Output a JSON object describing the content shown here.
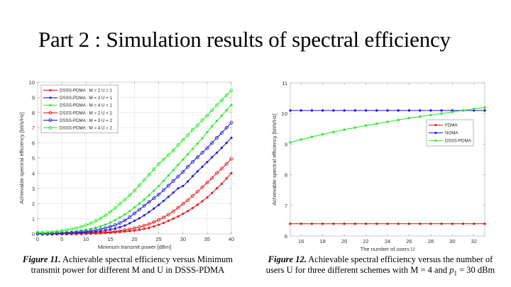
{
  "slide": {
    "title": "Part 2 : Simulation results of spectral efficiency"
  },
  "captions": {
    "fig11_label": "Figure 11.",
    "fig11_text_line1": " Achievable spectral efficiency versus Minimum",
    "fig11_text_line2": "transmit power for different M and U in DSSS-PDMA",
    "fig12_label": "Figure 12.",
    "fig12_text_line1": " Achievable spectral efficiency versus the number of",
    "fig12_text_line2_a": "users U for three different schemes with M = 4 and ",
    "fig12_text_line2_p": "p",
    "fig12_text_line2_sub": "1",
    "fig12_text_line2_b": " = 30 dBm"
  },
  "chart_data": [
    {
      "type": "line",
      "title": "",
      "xlabel": "Minimum transmit power [dBm]",
      "ylabel": "Achievable spectral efficiency [bit/s/Hz]",
      "xlim": [
        0,
        40
      ],
      "ylim": [
        0,
        10
      ],
      "xticks": [
        0,
        5,
        10,
        15,
        20,
        25,
        30,
        35,
        40
      ],
      "yticks": [
        0,
        1,
        2,
        3,
        4,
        5,
        6,
        7,
        8,
        9,
        10
      ],
      "grid": true,
      "legend_position": "top-left",
      "x": [
        0,
        1,
        2,
        3,
        4,
        5,
        6,
        7,
        8,
        9,
        10,
        11,
        12,
        13,
        14,
        15,
        16,
        17,
        18,
        19,
        20,
        21,
        22,
        23,
        24,
        25,
        26,
        27,
        28,
        29,
        30,
        31,
        32,
        33,
        34,
        35,
        36,
        37,
        38,
        39,
        40
      ],
      "series": [
        {
          "name": "DSSS-PDMA : M = 2  U = 1",
          "color": "#e8191c",
          "marker": "filled",
          "values": [
            0.0,
            0.0,
            0.0,
            0.0,
            0.0,
            0.0,
            0.01,
            0.01,
            0.01,
            0.02,
            0.02,
            0.03,
            0.04,
            0.05,
            0.06,
            0.08,
            0.1,
            0.12,
            0.15,
            0.18,
            0.22,
            0.27,
            0.33,
            0.4,
            0.49,
            0.6,
            0.72,
            0.86,
            1.0,
            1.15,
            1.32,
            1.5,
            1.7,
            1.92,
            2.15,
            2.4,
            2.7,
            3.0,
            3.3,
            3.65,
            4.0
          ]
        },
        {
          "name": "DSSS-PDMA : M = 3  U = 1",
          "color": "#1a1ae0",
          "marker": "filled",
          "values": [
            0.0,
            0.0,
            0.01,
            0.01,
            0.02,
            0.02,
            0.03,
            0.04,
            0.05,
            0.07,
            0.09,
            0.11,
            0.14,
            0.17,
            0.22,
            0.28,
            0.35,
            0.44,
            0.55,
            0.7,
            0.86,
            1.03,
            1.22,
            1.44,
            1.67,
            1.91,
            2.17,
            2.44,
            2.72,
            3.0,
            3.15,
            3.45,
            3.8,
            4.12,
            4.42,
            4.73,
            5.05,
            5.35,
            5.67,
            6.0,
            6.33
          ]
        },
        {
          "name": "DSSS-PDMA : M = 4  U = 1",
          "color": "#2ee82e",
          "marker": "filled",
          "values": [
            0.02,
            0.03,
            0.04,
            0.05,
            0.06,
            0.08,
            0.1,
            0.13,
            0.17,
            0.21,
            0.26,
            0.33,
            0.41,
            0.5,
            0.61,
            0.75,
            0.9,
            1.08,
            1.28,
            1.5,
            1.75,
            2.0,
            2.25,
            2.55,
            2.85,
            3.15,
            3.5,
            3.85,
            4.2,
            4.55,
            4.9,
            5.25,
            5.6,
            5.95,
            6.3,
            6.7,
            7.1,
            7.45,
            7.8,
            8.15,
            8.5
          ]
        },
        {
          "name": "DSSS-PDMA : M = 2  U = 2",
          "color": "#e8191c",
          "marker": "open",
          "values": [
            0.0,
            0.0,
            0.0,
            0.0,
            0.01,
            0.01,
            0.01,
            0.02,
            0.02,
            0.03,
            0.04,
            0.05,
            0.06,
            0.08,
            0.1,
            0.13,
            0.16,
            0.2,
            0.25,
            0.3,
            0.37,
            0.45,
            0.54,
            0.65,
            0.78,
            0.92,
            1.08,
            1.27,
            1.48,
            1.72,
            1.98,
            2.22,
            2.5,
            2.78,
            3.08,
            3.38,
            3.68,
            4.0,
            4.3,
            4.62,
            4.95
          ]
        },
        {
          "name": "DSSS-PDMA : M = 3  U = 2",
          "color": "#1a1ae0",
          "marker": "open",
          "values": [
            0.01,
            0.01,
            0.01,
            0.02,
            0.03,
            0.04,
            0.05,
            0.07,
            0.09,
            0.12,
            0.15,
            0.19,
            0.24,
            0.3,
            0.38,
            0.47,
            0.58,
            0.72,
            0.88,
            1.1,
            1.35,
            1.6,
            1.85,
            2.1,
            2.35,
            2.6,
            2.88,
            3.18,
            3.48,
            3.78,
            4.08,
            4.42,
            4.75,
            5.05,
            5.35,
            5.65,
            6.0,
            6.33,
            6.66,
            7.0,
            7.33
          ]
        },
        {
          "name": "DSSS-PDMA : M = 4  U = 2",
          "color": "#2ee82e",
          "marker": "open",
          "values": [
            0.08,
            0.09,
            0.11,
            0.13,
            0.16,
            0.2,
            0.25,
            0.31,
            0.38,
            0.47,
            0.58,
            0.7,
            0.85,
            1.02,
            1.22,
            1.45,
            1.7,
            1.98,
            2.25,
            2.55,
            2.85,
            3.2,
            3.55,
            3.9,
            4.25,
            4.6,
            4.9,
            5.2,
            5.5,
            5.85,
            6.2,
            6.5,
            6.85,
            7.15,
            7.5,
            7.8,
            8.15,
            8.5,
            8.8,
            9.15,
            9.45
          ]
        }
      ]
    },
    {
      "type": "line",
      "title": "",
      "xlabel": "The number of users U",
      "ylabel": "Achievable spectral efficiency [bit/s/Hz]",
      "xlim": [
        15,
        33
      ],
      "ylim": [
        6,
        11
      ],
      "xticks": [
        16,
        18,
        20,
        22,
        24,
        26,
        28,
        30,
        32
      ],
      "yticks": [
        6,
        7,
        8,
        9,
        10,
        11
      ],
      "grid": false,
      "legend_position": "center-right",
      "x": [
        15,
        16,
        17,
        18,
        19,
        20,
        21,
        22,
        23,
        24,
        25,
        26,
        27,
        28,
        29,
        30,
        31,
        32,
        33
      ],
      "series": [
        {
          "name": "FDMA",
          "color": "#e8191c",
          "marker": "filled",
          "values": [
            6.4,
            6.4,
            6.4,
            6.4,
            6.4,
            6.4,
            6.4,
            6.4,
            6.4,
            6.4,
            6.4,
            6.4,
            6.4,
            6.4,
            6.4,
            6.4,
            6.4,
            6.4,
            6.4
          ]
        },
        {
          "name": "NOMA",
          "color": "#1a1ae0",
          "marker": "filled",
          "values": [
            10.1,
            10.1,
            10.1,
            10.1,
            10.1,
            10.1,
            10.1,
            10.1,
            10.1,
            10.1,
            10.1,
            10.1,
            10.1,
            10.1,
            10.1,
            10.1,
            10.1,
            10.1,
            10.1
          ]
        },
        {
          "name": "DSSS-PDMA",
          "color": "#2ee82e",
          "marker": "filled",
          "values": [
            9.06,
            9.15,
            9.24,
            9.32,
            9.4,
            9.47,
            9.54,
            9.61,
            9.67,
            9.73,
            9.79,
            9.85,
            9.9,
            9.95,
            10.0,
            10.05,
            10.1,
            10.15,
            10.2
          ]
        }
      ]
    }
  ]
}
